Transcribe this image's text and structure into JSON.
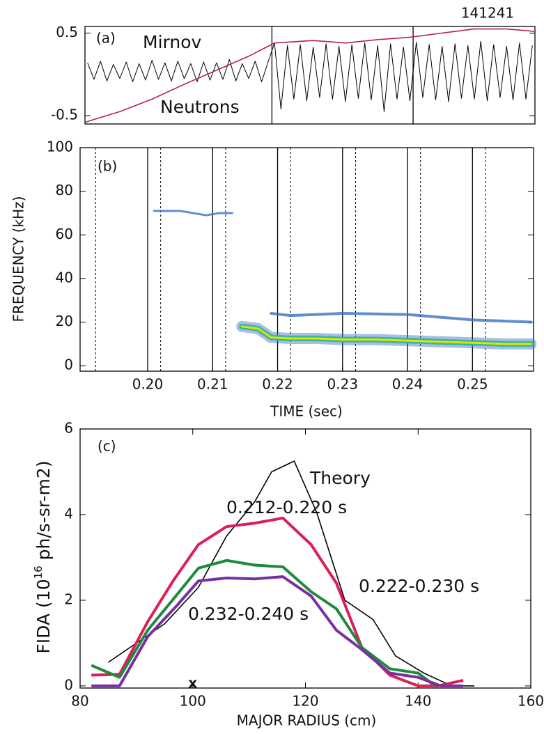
{
  "chart_data": [
    {
      "type": "line",
      "panel_label": "(a)",
      "shot": "141241",
      "xlim": [
        0.1896,
        0.2594
      ],
      "ylim": [
        -0.6,
        0.58
      ],
      "yticks": [
        0.5,
        -0.5
      ],
      "vertical_lines": [
        0.2186,
        0.2405
      ],
      "series": [
        {
          "name": "Mirnov",
          "color": "#000000",
          "x": [
            0.19,
            0.191,
            0.192,
            0.193,
            0.194,
            0.195,
            0.196,
            0.197,
            0.198,
            0.199,
            0.2,
            0.201,
            0.202,
            0.203,
            0.204,
            0.205,
            0.206,
            0.207,
            0.208,
            0.209,
            0.21,
            0.211,
            0.212,
            0.213,
            0.214,
            0.215,
            0.216,
            0.217,
            0.218,
            0.219,
            0.22,
            0.221,
            0.222,
            0.223,
            0.224,
            0.225,
            0.226,
            0.227,
            0.228,
            0.229,
            0.23,
            0.231,
            0.232,
            0.233,
            0.234,
            0.235,
            0.236,
            0.237,
            0.238,
            0.239,
            0.24,
            0.241,
            0.242,
            0.243,
            0.244,
            0.245,
            0.246,
            0.247,
            0.248,
            0.249,
            0.25,
            0.251,
            0.252,
            0.253,
            0.254,
            0.255,
            0.256,
            0.257,
            0.258,
            0.259
          ],
          "values": [
            0.14,
            -0.06,
            0.16,
            -0.08,
            0.12,
            -0.05,
            0.15,
            -0.09,
            0.13,
            -0.07,
            0.17,
            -0.06,
            0.14,
            -0.08,
            0.16,
            -0.05,
            0.13,
            -0.09,
            0.15,
            -0.07,
            0.14,
            -0.06,
            0.18,
            -0.08,
            0.13,
            -0.05,
            0.16,
            -0.09,
            0.15,
            0.38,
            -0.42,
            0.35,
            -0.3,
            0.36,
            -0.32,
            0.33,
            -0.28,
            0.37,
            -0.3,
            0.34,
            -0.33,
            0.36,
            -0.29,
            0.38,
            -0.31,
            0.35,
            -0.45,
            0.37,
            -0.3,
            0.33,
            -0.32,
            0.39,
            -0.28,
            0.36,
            -0.31,
            0.34,
            -0.33,
            0.37,
            -0.29,
            0.35,
            -0.3,
            0.4,
            -0.32,
            0.36,
            -0.28,
            0.34,
            -0.31,
            0.38,
            -0.3,
            0.35
          ]
        },
        {
          "name": "Neutrons",
          "color": "#b5224a",
          "x": [
            0.1896,
            0.195,
            0.2,
            0.205,
            0.21,
            0.215,
            0.219,
            0.225,
            0.23,
            0.235,
            0.24,
            0.245,
            0.25,
            0.255,
            0.2594
          ],
          "values": [
            -0.58,
            -0.45,
            -0.3,
            -0.12,
            0.05,
            0.22,
            0.38,
            0.41,
            0.38,
            0.42,
            0.45,
            0.5,
            0.55,
            0.55,
            0.52
          ]
        }
      ]
    },
    {
      "type": "contour",
      "panel_label": "(b)",
      "x_label": "TIME (sec)",
      "y_label": "FREQUENCY (kHz)",
      "xlim": [
        0.1896,
        0.2594
      ],
      "ylim": [
        -2.5,
        100
      ],
      "xticks": [
        {
          "value": 0.2,
          "label": "0.20"
        },
        {
          "value": 0.21,
          "label": "0.21"
        },
        {
          "value": 0.22,
          "label": "0.22"
        },
        {
          "value": 0.23,
          "label": "0.23"
        },
        {
          "value": 0.24,
          "label": "0.24"
        },
        {
          "value": 0.25,
          "label": "0.25"
        }
      ],
      "yticks": [
        0,
        20,
        40,
        60,
        80,
        100
      ],
      "solid_lines": [
        0.2,
        0.21,
        0.22,
        0.23,
        0.24,
        0.25
      ],
      "dotted_lines": [
        0.192,
        0.202,
        0.212,
        0.222,
        0.232,
        0.242,
        0.252
      ],
      "series": [
        {
          "color": "#e8e000",
          "x": [
            0.2145,
            0.217,
            0.219,
            0.222,
            0.226,
            0.23,
            0.235,
            0.24,
            0.245,
            0.25,
            0.255,
            0.259
          ],
          "values": [
            18,
            17,
            13,
            12.5,
            12.5,
            12,
            12,
            11.5,
            11,
            10.5,
            10,
            10
          ]
        },
        {
          "color": "#3a6fc4",
          "x": [
            0.219,
            0.222,
            0.23,
            0.24,
            0.25,
            0.259
          ],
          "values": [
            24,
            23,
            24,
            23.5,
            21,
            20
          ]
        },
        {
          "color": "#3a6fc4",
          "x": [
            0.201,
            0.205,
            0.209,
            0.211,
            0.213
          ],
          "values": [
            71,
            71,
            69,
            70,
            70
          ]
        }
      ]
    },
    {
      "type": "line",
      "panel_label": "(c)",
      "x_label": "MAJOR RADIUS (cm)",
      "y_label": {
        "before": "FIDA (10",
        "superscript": "16",
        "after": " ph/s-sr-m2)"
      },
      "xlim": [
        80,
        160
      ],
      "ylim": [
        -0.05,
        6
      ],
      "xticks": [
        80,
        100,
        120,
        140,
        160
      ],
      "yticks": [
        0,
        2,
        4,
        6
      ],
      "annotations": [
        {
          "text": "x",
          "x": 100
        }
      ],
      "series": [
        {
          "name": "Theory",
          "color": "#000000",
          "x": [
            85,
            95,
            101,
            106,
            111,
            114,
            118,
            122,
            127,
            132,
            136,
            141,
            146,
            150
          ],
          "values": [
            0.55,
            1.45,
            2.3,
            3.5,
            4.3,
            5.0,
            5.25,
            4.05,
            2.0,
            1.55,
            0.7,
            0.3,
            0,
            0
          ]
        },
        {
          "name": "0.212-0.220 s",
          "color": "#dc1f55",
          "x": [
            82,
            87,
            92,
            96.5,
            101,
            106,
            111,
            116,
            121,
            125.5,
            130,
            135,
            140,
            143.5,
            148
          ],
          "values": [
            0.25,
            0.27,
            1.5,
            2.45,
            3.3,
            3.72,
            3.8,
            3.92,
            3.3,
            2.4,
            0.9,
            0.25,
            0,
            0,
            0.13
          ]
        },
        {
          "name": "0.222-0.230 s",
          "color": "#1f8a3c",
          "x": [
            82,
            87,
            92,
            97,
            101,
            106,
            111,
            116,
            121,
            125.5,
            130,
            135,
            140,
            143
          ],
          "values": [
            0.48,
            0.2,
            1.3,
            2.1,
            2.75,
            2.93,
            2.82,
            2.78,
            2.2,
            1.8,
            0.9,
            0.4,
            0.3,
            0
          ]
        },
        {
          "name": "0.232-0.240 s",
          "color": "#7a2fa0",
          "x": [
            82,
            87,
            92,
            97,
            101,
            106,
            111,
            116,
            121,
            125.5,
            130,
            135,
            140,
            144,
            148
          ],
          "values": [
            0,
            0,
            1.15,
            1.85,
            2.45,
            2.52,
            2.5,
            2.55,
            2.1,
            1.3,
            0.85,
            0.3,
            0.2,
            0,
            0
          ]
        }
      ]
    }
  ]
}
